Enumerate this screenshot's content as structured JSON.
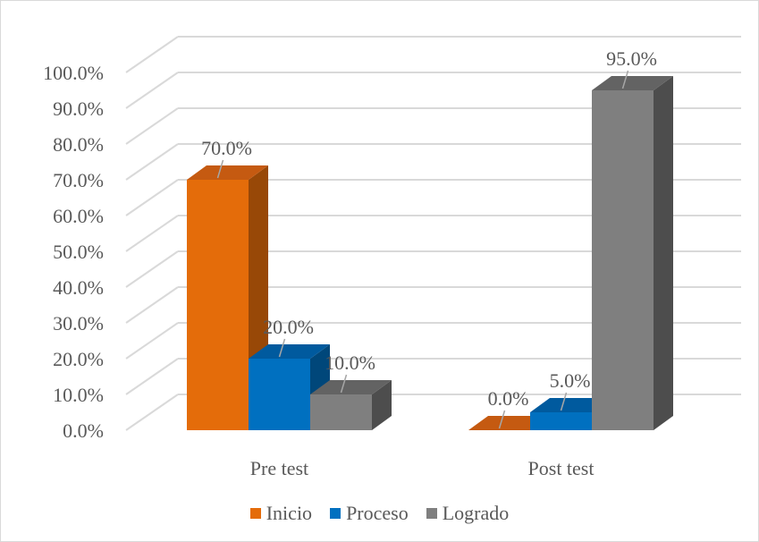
{
  "chart_data": {
    "type": "bar",
    "categories": [
      "Pre test",
      "Post test"
    ],
    "series": [
      {
        "name": "Inicio",
        "values": [
          70.0,
          0.0
        ],
        "labels": [
          "70.0%",
          "0.0%"
        ],
        "color": "#e46c0a",
        "side": "#984807",
        "top": "#c55a11"
      },
      {
        "name": "Proceso",
        "values": [
          20.0,
          5.0
        ],
        "labels": [
          "20.0%",
          "5.0%"
        ],
        "color": "#0070c0",
        "side": "#00477a",
        "top": "#005a9e"
      },
      {
        "name": "Logrado",
        "values": [
          10.0,
          95.0
        ],
        "labels": [
          "10.0%",
          "95.0%"
        ],
        "color": "#7f7f7f",
        "side": "#4d4d4d",
        "top": "#636363"
      }
    ],
    "ylim": [
      0,
      100
    ],
    "yticks": [
      "0.0%",
      "10.0%",
      "20.0%",
      "30.0%",
      "40.0%",
      "50.0%",
      "60.0%",
      "70.0%",
      "80.0%",
      "90.0%",
      "100.0%"
    ],
    "grid": true,
    "legend": "bottom",
    "three_d": true
  }
}
